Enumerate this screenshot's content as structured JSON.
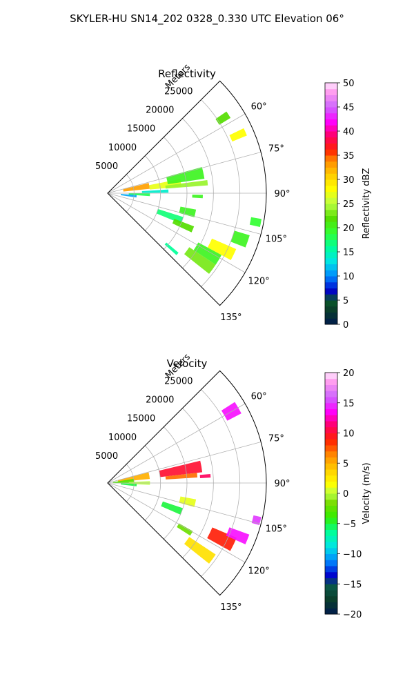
{
  "figure": {
    "suptitle": "SKYLER-HU  SN14_202  0328_0.330 UTC Elevation 06°"
  },
  "chart_data": [
    {
      "type": "heatmap",
      "projection": "polar-sector",
      "title": "Reflectivity",
      "radial_label": "Meters",
      "radial_ticks": [
        5000,
        10000,
        15000,
        20000,
        25000
      ],
      "radial_tick_labels": [
        "5000",
        "10000",
        "15000",
        "20000",
        "25000"
      ],
      "rlim": [
        0,
        30000
      ],
      "theta_ticks": [
        60,
        75,
        90,
        105,
        120,
        135
      ],
      "theta_tick_labels": [
        "60°",
        "75°",
        "90°",
        "105°",
        "120°",
        "135°"
      ],
      "theta_range": [
        45,
        135
      ],
      "grid": true,
      "colorbar": {
        "label": "Reflectivity dBZ",
        "ticks": [
          0,
          5,
          10,
          15,
          20,
          25,
          30,
          35,
          40,
          45,
          50
        ],
        "tick_labels": [
          "0",
          "5",
          "10",
          "15",
          "20",
          "25",
          "30",
          "35",
          "40",
          "45",
          "50"
        ],
        "vmin": 0,
        "vmax": 50
      },
      "echoes": [
        {
          "az": 80,
          "r": 5500,
          "dr": 5000,
          "daz": 8,
          "value": 33
        },
        {
          "az": 82,
          "r": 11000,
          "dr": 6000,
          "daz": 6,
          "value": 27
        },
        {
          "az": 78,
          "r": 15000,
          "dr": 7000,
          "daz": 7,
          "value": 20
        },
        {
          "az": 84,
          "r": 15000,
          "dr": 8000,
          "daz": 3,
          "value": 24
        },
        {
          "az": 88,
          "r": 9000,
          "dr": 5000,
          "daz": 3,
          "value": 14
        },
        {
          "az": 92,
          "r": 6000,
          "dr": 4000,
          "daz": 4,
          "value": 18
        },
        {
          "az": 96,
          "r": 4000,
          "dr": 3000,
          "daz": 5,
          "value": 11
        },
        {
          "az": 103,
          "r": 15500,
          "dr": 3000,
          "daz": 5,
          "value": 20
        },
        {
          "az": 110,
          "r": 12500,
          "dr": 5000,
          "daz": 5,
          "value": 17
        },
        {
          "az": 113,
          "r": 15500,
          "dr": 4000,
          "daz": 4,
          "value": 22
        },
        {
          "az": 116,
          "r": 24000,
          "dr": 5000,
          "daz": 5,
          "value": 28
        },
        {
          "az": 121,
          "r": 22000,
          "dr": 5000,
          "daz": 5,
          "value": 20
        },
        {
          "az": 126,
          "r": 21500,
          "dr": 6000,
          "daz": 5,
          "value": 23
        },
        {
          "az": 109,
          "r": 26500,
          "dr": 3000,
          "daz": 5,
          "value": 20
        },
        {
          "az": 101,
          "r": 28500,
          "dr": 2000,
          "daz": 3,
          "value": 19
        },
        {
          "az": 66,
          "r": 27000,
          "dr": 3000,
          "daz": 3,
          "value": 28
        },
        {
          "az": 57,
          "r": 26000,
          "dr": 2500,
          "daz": 3,
          "value": 22
        },
        {
          "az": 131,
          "r": 16000,
          "dr": 3000,
          "daz": 2,
          "value": 16
        },
        {
          "az": 92,
          "r": 17000,
          "dr": 2000,
          "daz": 2,
          "value": 20
        }
      ]
    },
    {
      "type": "heatmap",
      "projection": "polar-sector",
      "title": "Velocity",
      "radial_label": "Meters",
      "radial_ticks": [
        5000,
        10000,
        15000,
        20000,
        25000
      ],
      "radial_tick_labels": [
        "5000",
        "10000",
        "15000",
        "20000",
        "25000"
      ],
      "rlim": [
        0,
        30000
      ],
      "theta_ticks": [
        60,
        75,
        90,
        105,
        120,
        135
      ],
      "theta_tick_labels": [
        "60°",
        "75°",
        "90°",
        "105°",
        "120°",
        "135°"
      ],
      "theta_range": [
        45,
        135
      ],
      "grid": true,
      "colorbar": {
        "label": "Velocity (m/s)",
        "ticks": [
          -20,
          -15,
          -10,
          -5,
          0,
          5,
          10,
          15,
          20
        ],
        "tick_labels": [
          "−20",
          "−15",
          "−10",
          "−5",
          "0",
          "5",
          "10",
          "15",
          "20"
        ],
        "vmin": -20,
        "vmax": 20
      },
      "echoes": [
        {
          "az": 80,
          "r": 5000,
          "dr": 6000,
          "daz": 9,
          "value": 5
        },
        {
          "az": 86,
          "r": 3000,
          "dr": 4000,
          "daz": 10,
          "value": -3
        },
        {
          "az": 80,
          "r": 14000,
          "dr": 8000,
          "daz": 7,
          "value": 10
        },
        {
          "az": 85,
          "r": 14000,
          "dr": 6000,
          "daz": 3,
          "value": 7
        },
        {
          "az": 90,
          "r": 6000,
          "dr": 4000,
          "daz": 5,
          "value": 0
        },
        {
          "az": 94,
          "r": 4000,
          "dr": 3000,
          "daz": 5,
          "value": -5
        },
        {
          "az": 103,
          "r": 15500,
          "dr": 3000,
          "daz": 5,
          "value": 1
        },
        {
          "az": 111,
          "r": 13000,
          "dr": 4000,
          "daz": 5,
          "value": -5
        },
        {
          "az": 116,
          "r": 24000,
          "dr": 5000,
          "daz": 6,
          "value": 9
        },
        {
          "az": 112,
          "r": 26500,
          "dr": 4000,
          "daz": 4,
          "value": 14
        },
        {
          "az": 126,
          "r": 21500,
          "dr": 6000,
          "daz": 5,
          "value": 3
        },
        {
          "az": 121,
          "r": 17000,
          "dr": 3000,
          "daz": 3,
          "value": -2
        },
        {
          "az": 60,
          "r": 27000,
          "dr": 3000,
          "daz": 5,
          "value": 14
        },
        {
          "az": 86,
          "r": 18500,
          "dr": 2000,
          "daz": 2,
          "value": 11
        },
        {
          "az": 104,
          "r": 29000,
          "dr": 1500,
          "daz": 3,
          "value": 15
        }
      ]
    }
  ]
}
